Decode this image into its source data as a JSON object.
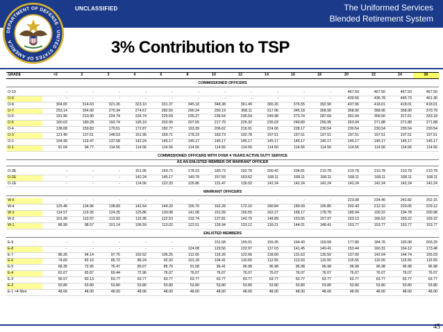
{
  "header": {
    "classification": "UNCLASSIFIED",
    "title_line1": "The Uniformed Services",
    "title_line2": "Blended Retirement System"
  },
  "slide": {
    "title": "3% Contribution to TSP",
    "page_number": "45"
  },
  "seal": {
    "text": "DEPARTMENT OF DEFENSE · UNITED STATES OF AMERICA",
    "colors": {
      "ring": "#1b3a8a",
      "gold": "#d8b030",
      "field": "#ffffff"
    }
  },
  "table": {
    "header": [
      "GRADE",
      "<2",
      "2",
      "3",
      "4",
      "6",
      "8",
      "10",
      "12",
      "14",
      "16",
      "18",
      "20",
      "22",
      "24",
      "26"
    ],
    "highlight_column": "26",
    "sections": [
      {
        "title": "COMMISSIONED OFFICERS",
        "rows": [
          {
            "grade": "O-10",
            "highlight": false,
            "values": [
              "-",
              "-",
              "-",
              "-",
              "-",
              "-",
              "-",
              "-",
              "-",
              "-",
              "-",
              "467.50",
              "467.50",
              "467.50",
              "467.50"
            ]
          },
          {
            "grade": "O-9",
            "highlight": true,
            "values": [
              "-",
              "-",
              "-",
              "-",
              "-",
              "-",
              "-",
              "-",
              "-",
              "-",
              "-",
              "430.56",
              "436.78",
              "445.73",
              "461.36"
            ]
          },
          {
            "grade": "O-8",
            "highlight": false,
            "values": [
              "304.65",
              "314.63",
              "321.26",
              "323.10",
              "331.37",
              "345.18",
              "348.38",
              "361.49",
              "365.26",
              "376.55",
              "392.90",
              "407.96",
              "418.01",
              "418.01",
              "418.01"
            ]
          },
          {
            "grade": "O-7",
            "highlight": true,
            "values": [
              "253.14",
              "264.90",
              "270.34",
              "274.67",
              "282.50",
              "290.24",
              "299.19",
              "308.11",
              "317.06",
              "345.18",
              "368.90",
              "368.90",
              "368.90",
              "368.90",
              "370.79"
            ]
          },
          {
            "grade": "O-6",
            "highlight": false,
            "values": [
              "191.96",
              "210.90",
              "224.74",
              "224.74",
              "225.59",
              "235.27",
              "236.54",
              "236.54",
              "249.98",
              "273.74",
              "287.69",
              "301.64",
              "309.56",
              "317.61",
              "333.18"
            ]
          },
          {
            "grade": "O-5",
            "highlight": true,
            "values": [
              "160.03",
              "180.28",
              "192.74",
              "195.10",
              "202.90",
              "207.55",
              "217.79",
              "225.32",
              "235.03",
              "249.89",
              "256.95",
              "263.94",
              "271.88",
              "271.88",
              "271.88"
            ]
          },
          {
            "grade": "O-4",
            "highlight": false,
            "values": [
              "138.08",
              "159.83",
              "170.51",
              "172.87",
              "182.77",
              "193.39",
              "206.62",
              "216.91",
              "224.06",
              "228.17",
              "230.54",
              "230.54",
              "230.54",
              "230.54",
              "230.54"
            ]
          },
          {
            "grade": "O-3",
            "highlight": true,
            "values": [
              "121.40",
              "137.61",
              "148.53",
              "161.95",
              "169.71",
              "178.23",
              "183.73",
              "192.78",
              "197.51",
              "197.51",
              "197.51",
              "197.51",
              "197.51",
              "197.51",
              "197.51"
            ]
          },
          {
            "grade": "O-2",
            "highlight": false,
            "values": [
              "104.90",
              "119.47",
              "137.58",
              "142.24",
              "145.17",
              "145.17",
              "145.17",
              "145.17",
              "145.17",
              "145.17",
              "145.17",
              "145.17",
              "145.17",
              "145.17",
              "145.17"
            ]
          },
          {
            "grade": "O-1",
            "highlight": true,
            "values": [
              "91.04",
              "94.77",
              "114.56",
              "114.56",
              "114.56",
              "114.56",
              "114.56",
              "114.56",
              "114.56",
              "114.56",
              "114.56",
              "114.56",
              "114.56",
              "114.56",
              "114.56"
            ]
          }
        ]
      },
      {
        "title": "COMMISSIONED OFFICERS WITH OVER 4 YEARS ACTIVE DUTY SERVICE",
        "title2": "AS AN ENLISTED MEMBER OR WARRANT OFFICER",
        "rows": [
          {
            "grade": "O-3E",
            "highlight": false,
            "values": [
              "-",
              "-",
              "-",
              "161.95",
              "169.71",
              "178.23",
              "183.73",
              "192.78",
              "200.42",
              "204.81",
              "210.78",
              "210.78",
              "210.78",
              "210.78",
              "210.78"
            ]
          },
          {
            "grade": "O-2E",
            "highlight": true,
            "values": [
              "-",
              "-",
              "-",
              "142.24",
              "145.17",
              "149.79",
              "157.59",
              "163.62",
              "168.11",
              "168.11",
              "168.11",
              "168.11",
              "168.11",
              "168.11",
              "168.11"
            ]
          },
          {
            "grade": "O-1E",
            "highlight": false,
            "values": [
              "-",
              "-",
              "-",
              "114.56",
              "122.33",
              "126.86",
              "131.47",
              "136.02",
              "142.24",
              "142.24",
              "142.24",
              "142.24",
              "142.24",
              "142.24",
              "142.24"
            ]
          }
        ]
      },
      {
        "title": "WARRANT OFFICERS",
        "rows": [
          {
            "grade": "W-5",
            "highlight": true,
            "values": [
              "-",
              "-",
              "-",
              "-",
              "-",
              "-",
              "-",
              "-",
              "-",
              "-",
              "-",
              "223.08",
              "234.40",
              "242.82",
              "252.15"
            ]
          },
          {
            "grade": "W-4",
            "highlight": false,
            "values": [
              "125.46",
              "134.96",
              "138.83",
              "142.64",
              "149.20",
              "155.70",
              "162.28",
              "172.16",
              "180.84",
              "189.09",
              "195.85",
              "202.43",
              "212.10",
              "220.05",
              "229.12"
            ]
          },
          {
            "grade": "W-3",
            "highlight": true,
            "values": [
              "114.57",
              "119.35",
              "124.25",
              "125.86",
              "130.98",
              "141.08",
              "151.59",
              "156.55",
              "162.27",
              "168.17",
              "178.78",
              "185.94",
              "190.22",
              "194.78",
              "200.98"
            ]
          },
          {
            "grade": "W-2",
            "highlight": false,
            "values": [
              "101.39",
              "110.97",
              "113.92",
              "115.95",
              "122.53",
              "132.74",
              "137.81",
              "142.79",
              "148.89",
              "153.65",
              "157.97",
              "163.13",
              "166.53",
              "169.22",
              "169.22"
            ]
          },
          {
            "grade": "W-1",
            "highlight": true,
            "values": [
              "88.99",
              "98.57",
              "101.14",
              "106.59",
              "113.02",
              "122.51",
              "126.94",
              "133.12",
              "139.21",
              "144.01",
              "148.41",
              "153.77",
              "153.77",
              "153.77",
              "153.77"
            ]
          }
        ]
      },
      {
        "title": "ENLISTED MEMBERS",
        "rows": [
          {
            "grade": "E-9",
            "highlight": false,
            "values": [
              "-",
              "-",
              "-",
              "-",
              "-",
              "-",
              "151.58",
              "155.01",
              "159.35",
              "164.43",
              "169.58",
              "177.80",
              "184.76",
              "192.08",
              "203.29"
            ]
          },
          {
            "grade": "E-8",
            "highlight": true,
            "values": [
              "-",
              "-",
              "-",
              "-",
              "-",
              "124.08",
              "129.56",
              "132.97",
              "137.03",
              "141.45",
              "149.41",
              "153.44",
              "160.31",
              "164.12",
              "173.48"
            ]
          },
          {
            "grade": "E-7",
            "highlight": false,
            "values": [
              "86.26",
              "94.14",
              "97.75",
              "102.52",
              "106.25",
              "112.65",
              "116.26",
              "122.66",
              "128.00",
              "131.63",
              "135.50",
              "137.00",
              "142.04",
              "144.74",
              "155.03"
            ]
          },
          {
            "grade": "E-6",
            "highlight": true,
            "values": [
              "74.60",
              "82.10",
              "85.72",
              "89.24",
              "92.92",
              "101.18",
              "104.41",
              "110.65",
              "112.55",
              "113.93",
              "115.55",
              "115.55",
              "115.55",
              "115.55",
              "115.55"
            ]
          },
          {
            "grade": "E-5",
            "highlight": false,
            "values": [
              "68.35",
              "72.95",
              "76.47",
              "80.07",
              "85.70",
              "91.58",
              "96.41",
              "96.98",
              "96.98",
              "96.98",
              "96.98",
              "96.98",
              "96.98",
              "96.98",
              "96.98"
            ]
          },
          {
            "grade": "E-4",
            "highlight": true,
            "values": [
              "62.67",
              "65.87",
              "69.44",
              "72.96",
              "76.07",
              "76.07",
              "76.07",
              "76.07",
              "76.07",
              "76.07",
              "76.07",
              "76.07",
              "76.07",
              "76.07",
              "76.07"
            ]
          },
          {
            "grade": "E-3",
            "highlight": false,
            "values": [
              "56.57",
              "60.13",
              "63.77",
              "63.77",
              "63.77",
              "63.77",
              "63.77",
              "63.77",
              "63.77",
              "63.77",
              "63.77",
              "63.77",
              "63.77",
              "63.77",
              "63.77"
            ]
          },
          {
            "grade": "E-2",
            "highlight": true,
            "values": [
              "53.80",
              "53.80",
              "53.80",
              "53.80",
              "53.80",
              "53.80",
              "53.80",
              "53.80",
              "53.80",
              "53.80",
              "53.80",
              "53.80",
              "53.80",
              "53.80",
              "53.80"
            ]
          },
          {
            "grade": "E-1 >4 Mon",
            "highlight": false,
            "values": [
              "48.00",
              "48.00",
              "48.00",
              "48.00",
              "48.00",
              "48.00",
              "48.00",
              "48.00",
              "48.00",
              "48.00",
              "48.00",
              "48.00",
              "48.00",
              "48.00",
              "48.00"
            ]
          }
        ]
      }
    ]
  }
}
